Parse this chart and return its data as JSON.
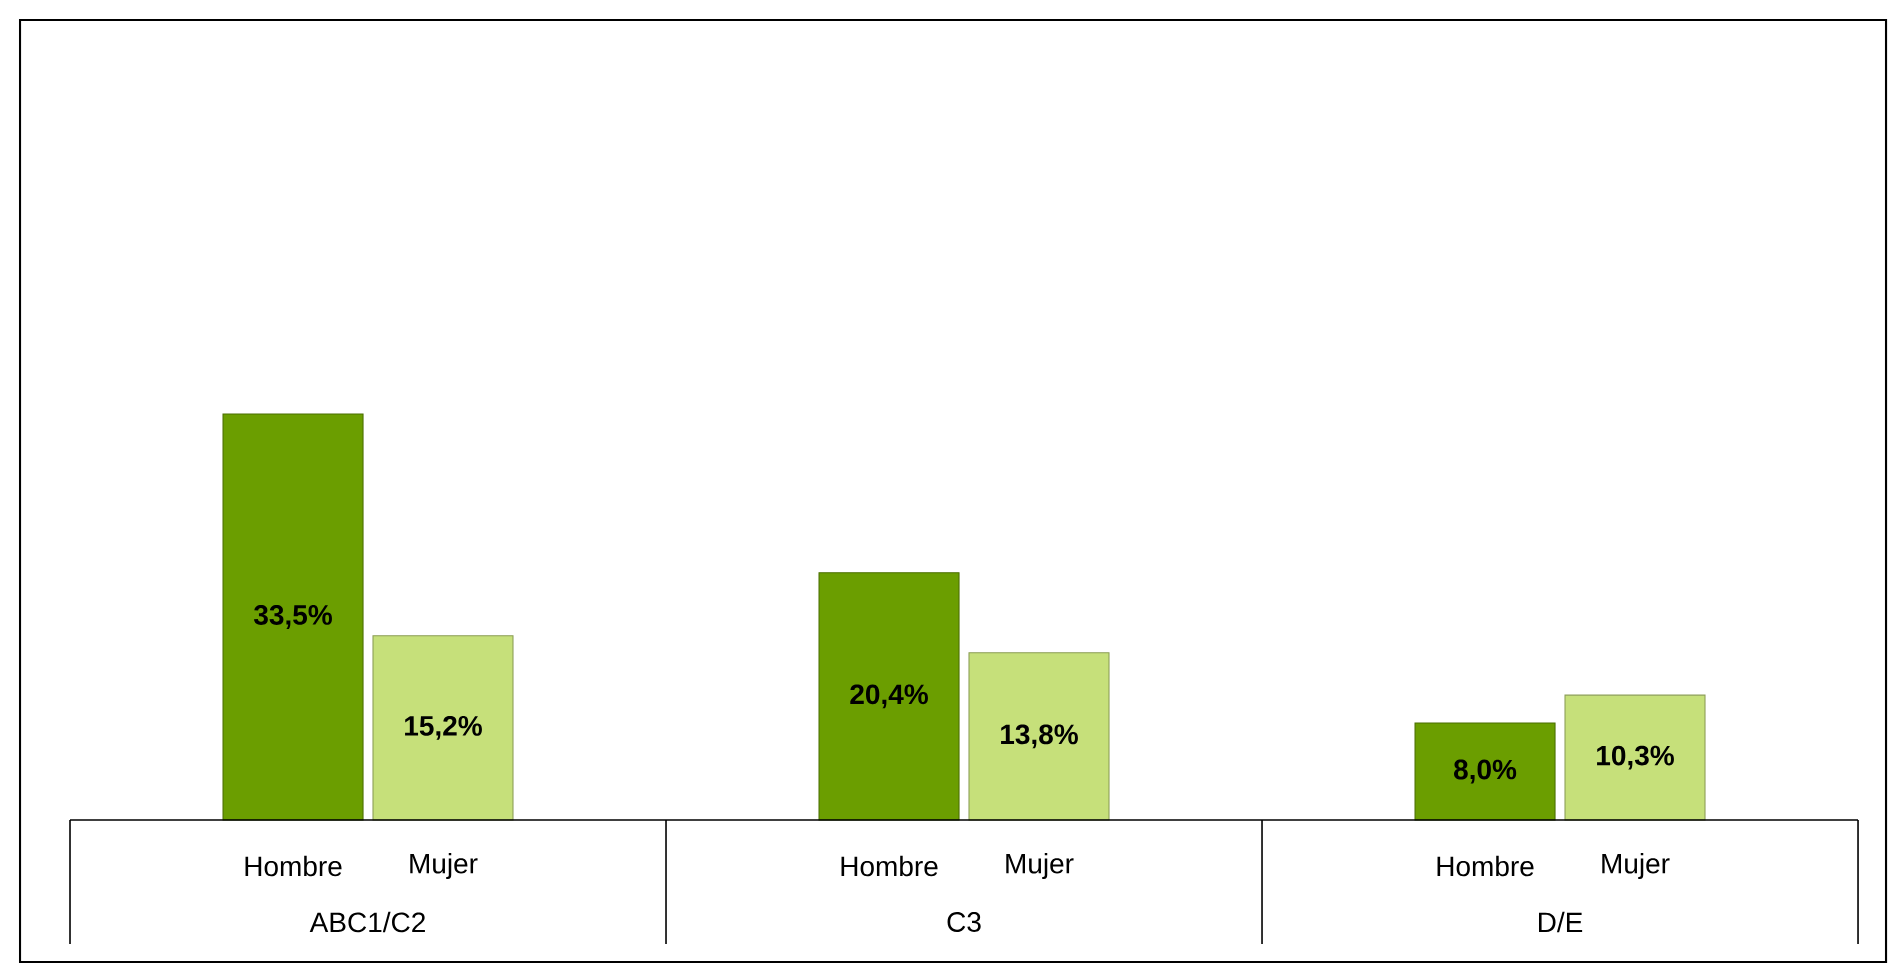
{
  "chart_data": {
    "type": "bar",
    "categories": [
      "ABC1/C2",
      "C3",
      "D/E"
    ],
    "series": [
      {
        "name": "Hombre",
        "color": "#6b9e00",
        "values": [
          33.5,
          20.4,
          8.0
        ],
        "value_labels": [
          "33,5%",
          "20,4%",
          "8,0%"
        ]
      },
      {
        "name": "Mujer",
        "color": "#c6e07a",
        "values": [
          15.2,
          13.8,
          10.3
        ],
        "value_labels": [
          "15,2%",
          "13,8%",
          "10,3%"
        ]
      }
    ]
  }
}
